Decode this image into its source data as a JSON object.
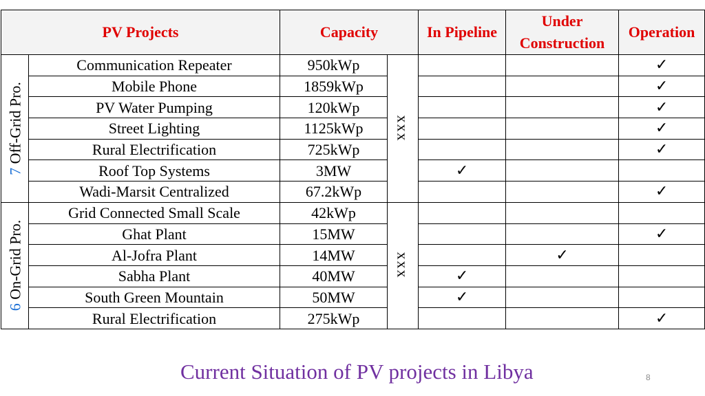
{
  "headers": {
    "projects": "PV Projects",
    "capacity": "Capacity",
    "pipeline": "In Pipeline",
    "construction": "Under Construction",
    "operation": "Operation"
  },
  "check_mark": "✓",
  "groups": [
    {
      "count": "7",
      "label": "Off-Grid Pro.",
      "placeholder": "xxx",
      "rows": [
        {
          "name": "Communication Repeater",
          "capacity": "950kWp",
          "pipeline": "",
          "construction": "",
          "operation": "✓"
        },
        {
          "name": "Mobile Phone",
          "capacity": "1859kWp",
          "pipeline": "",
          "construction": "",
          "operation": "✓"
        },
        {
          "name": "PV Water Pumping",
          "capacity": "120kWp",
          "pipeline": "",
          "construction": "",
          "operation": "✓"
        },
        {
          "name": "Street Lighting",
          "capacity": "1125kWp",
          "pipeline": "",
          "construction": "",
          "operation": "✓"
        },
        {
          "name": "Rural Electrification",
          "capacity": "725kWp",
          "pipeline": "",
          "construction": "",
          "operation": "✓"
        },
        {
          "name": "Roof Top Systems",
          "capacity": "3MW",
          "pipeline": "✓",
          "construction": "",
          "operation": ""
        },
        {
          "name": "Wadi-Marsit Centralized",
          "capacity": "67.2kWp",
          "pipeline": "",
          "construction": "",
          "operation": "✓"
        }
      ]
    },
    {
      "count": "6",
      "label": "On-Grid Pro.",
      "placeholder": "xxx",
      "rows": [
        {
          "name": "Grid Connected Small Scale",
          "capacity": "42kWp",
          "pipeline": "",
          "construction": "",
          "operation": ""
        },
        {
          "name": "Ghat Plant",
          "capacity": "15MW",
          "pipeline": "",
          "construction": "",
          "operation": "✓"
        },
        {
          "name": "Al-Jofra Plant",
          "capacity": "14MW",
          "pipeline": "",
          "construction": "✓",
          "operation": ""
        },
        {
          "name": "Sabha Plant",
          "capacity": "40MW",
          "pipeline": "✓",
          "construction": "",
          "operation": ""
        },
        {
          "name": "South Green Mountain",
          "capacity": "50MW",
          "pipeline": "✓",
          "construction": "",
          "operation": ""
        },
        {
          "name": "Rural Electrification",
          "capacity": "275kWp",
          "pipeline": "",
          "construction": "",
          "operation": "✓"
        }
      ]
    }
  ],
  "caption": "Current Situation of PV projects in Libya",
  "slide_number": "8"
}
